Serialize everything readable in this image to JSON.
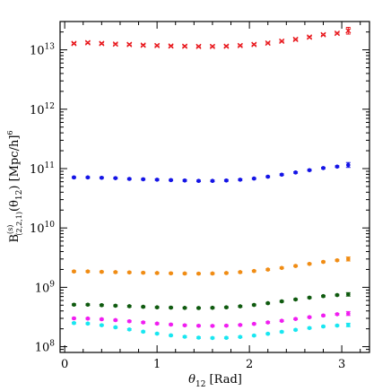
{
  "chart_data": {
    "type": "scatter",
    "title": "",
    "xlabel_main": "θ",
    "xlabel_sub": "12",
    "xlabel_unit": " [Rad]",
    "ylabel_main": "B",
    "ylabel_sup": "(s)",
    "ylabel_sub": "(2,2,1)",
    "ylabel_arg_open": "(θ",
    "ylabel_arg_sub": "12",
    "ylabel_arg_close": ")  [Mpc/h]",
    "ylabel_pow": "6",
    "xlim": [
      -0.05,
      3.3
    ],
    "ylim": [
      80000000.0,
      30000000000000.0
    ],
    "yscale": "log",
    "x_ticks": [
      0,
      1,
      2,
      3
    ],
    "x_tick_labels": [
      "0",
      "1",
      "2",
      "3"
    ],
    "y_ticks": [
      100000000.0,
      1000000000.0,
      10000000000.0,
      100000000000.0,
      1000000000000.0,
      10000000000000.0
    ],
    "y_tick_base": [
      "10",
      "10",
      "10",
      "10",
      "10",
      "10"
    ],
    "y_tick_exp": [
      "8",
      "9",
      "10",
      "11",
      "12",
      "13"
    ],
    "grid": false,
    "x": [
      0.1,
      0.25,
      0.4,
      0.55,
      0.7,
      0.85,
      1.0,
      1.15,
      1.3,
      1.45,
      1.6,
      1.75,
      1.9,
      2.05,
      2.2,
      2.35,
      2.5,
      2.65,
      2.8,
      2.95,
      3.07
    ],
    "series": [
      {
        "color": "#e8191e",
        "marker": "x",
        "values": [
          12800000000000.0,
          13200000000000.0,
          12800000000000.0,
          12500000000000.0,
          12300000000000.0,
          12000000000000.0,
          11800000000000.0,
          11600000000000.0,
          11500000000000.0,
          11400000000000.0,
          11400000000000.0,
          11500000000000.0,
          11800000000000.0,
          12300000000000.0,
          13000000000000.0,
          14000000000000.0,
          15000000000000.0,
          16400000000000.0,
          18000000000000.0,
          19000000000000.0,
          21000000000000.0
        ],
        "err_last": 0.14
      },
      {
        "color": "#1414e6",
        "marker": "dot",
        "values": [
          71000000000.0,
          71000000000.0,
          70000000000.0,
          69000000000.0,
          67000000000.0,
          66000000000.0,
          65000000000.0,
          64000000000.0,
          63000000000.0,
          62000000000.0,
          62000000000.0,
          63000000000.0,
          65000000000.0,
          68000000000.0,
          73000000000.0,
          79000000000.0,
          86000000000.0,
          94000000000.0,
          102000000000.0,
          108000000000.0,
          115000000000.0
        ],
        "err_last": 0.1
      },
      {
        "color": "#f08c14",
        "marker": "dot",
        "values": [
          1850000000.0,
          1850000000.0,
          1820000000.0,
          1800000000.0,
          1780000000.0,
          1760000000.0,
          1740000000.0,
          1720000000.0,
          1710000000.0,
          1700000000.0,
          1710000000.0,
          1740000000.0,
          1800000000.0,
          1880000000.0,
          1990000000.0,
          2120000000.0,
          2290000000.0,
          2480000000.0,
          2680000000.0,
          2850000000.0,
          3000000000.0
        ],
        "err_last": 0.08
      },
      {
        "color": "#0f5a0f",
        "marker": "dot",
        "values": [
          510000000.0,
          510000000.0,
          500000000.0,
          490000000.0,
          480000000.0,
          470000000.0,
          460000000.0,
          455000000.0,
          450000000.0,
          448000000.0,
          452000000.0,
          460000000.0,
          478000000.0,
          505000000.0,
          540000000.0,
          580000000.0,
          625000000.0,
          670000000.0,
          710000000.0,
          740000000.0,
          760000000.0
        ],
        "err_last": 0.07
      },
      {
        "color": "#f01ef0",
        "marker": "dot",
        "values": [
          300000000.0,
          298000000.0,
          290000000.0,
          280000000.0,
          268000000.0,
          256000000.0,
          245000000.0,
          236000000.0,
          229000000.0,
          225000000.0,
          224000000.0,
          226000000.0,
          232000000.0,
          242000000.0,
          256000000.0,
          273000000.0,
          293000000.0,
          314000000.0,
          335000000.0,
          352000000.0,
          362000000.0
        ],
        "err_last": 0.08
      },
      {
        "color": "#19e6f0",
        "marker": "dot",
        "values": [
          250000000.0,
          245000000.0,
          230000000.0,
          212000000.0,
          195000000.0,
          179000000.0,
          166000000.0,
          155000000.0,
          147000000.0,
          142000000.0,
          140000000.0,
          141000000.0,
          146000000.0,
          154000000.0,
          165000000.0,
          178000000.0,
          192000000.0,
          206000000.0,
          219000000.0,
          227000000.0,
          232000000.0
        ],
        "err_last": 0.07
      }
    ]
  }
}
